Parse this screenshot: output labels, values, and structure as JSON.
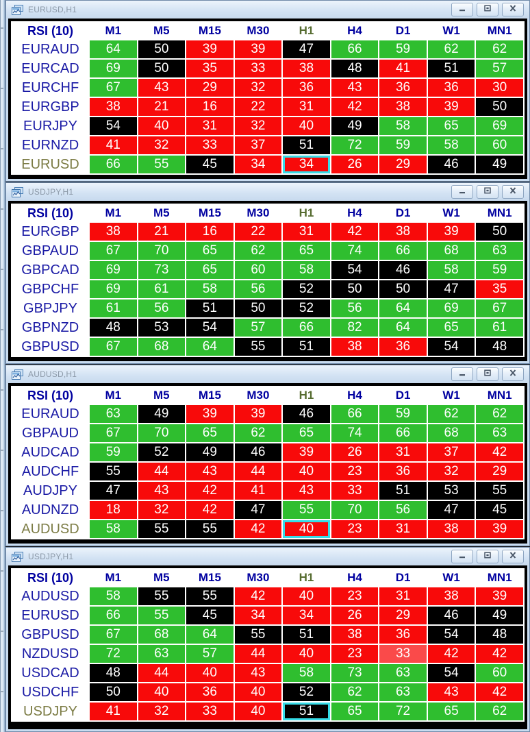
{
  "ui": {
    "colors": {
      "green": "#2fbe2f",
      "red": "#f80a0a",
      "red_light": "#fa4a4a",
      "black": "#000000",
      "highlight_border": "#35dce8",
      "header_text": "#0000a0",
      "active_timeframe_text": "#556b2f",
      "pair_text": "#1a1aa5",
      "chart_pair_text": "#7c7c45"
    },
    "titlebar_buttons": [
      {
        "id": "minimize",
        "label": "minimize"
      },
      {
        "id": "restore",
        "label": "restore"
      },
      {
        "id": "close",
        "label": "close"
      }
    ]
  },
  "windows": [
    {
      "title": "EURUSD,H1",
      "indicator": "RSI (10)",
      "timeframes": [
        "M1",
        "M5",
        "M15",
        "M30",
        "H1",
        "H4",
        "D1",
        "W1",
        "MN1"
      ],
      "active_timeframe": "H1",
      "rows": [
        {
          "pair": "EURAUD",
          "chart_symbol": false,
          "selected": -1,
          "values": [
            64,
            50,
            39,
            39,
            47,
            66,
            59,
            62,
            62
          ],
          "colors": [
            "green",
            "black",
            "red",
            "red",
            "black",
            "green",
            "green",
            "green",
            "green"
          ]
        },
        {
          "pair": "EURCAD",
          "chart_symbol": false,
          "selected": -1,
          "values": [
            69,
            50,
            35,
            33,
            38,
            48,
            41,
            51,
            57
          ],
          "colors": [
            "green",
            "black",
            "red",
            "red",
            "red",
            "black",
            "red",
            "black",
            "green"
          ]
        },
        {
          "pair": "EURCHF",
          "chart_symbol": false,
          "selected": -1,
          "values": [
            67,
            43,
            29,
            32,
            36,
            43,
            36,
            36,
            30
          ],
          "colors": [
            "green",
            "red",
            "red",
            "red",
            "red",
            "red",
            "red",
            "red",
            "red"
          ]
        },
        {
          "pair": "EURGBP",
          "chart_symbol": false,
          "selected": -1,
          "values": [
            38,
            21,
            16,
            22,
            31,
            42,
            38,
            39,
            50
          ],
          "colors": [
            "red",
            "red",
            "red",
            "red",
            "red",
            "red",
            "red",
            "red",
            "black"
          ]
        },
        {
          "pair": "EURJPY",
          "chart_symbol": false,
          "selected": -1,
          "values": [
            54,
            40,
            31,
            32,
            40,
            49,
            58,
            65,
            69
          ],
          "colors": [
            "black",
            "red",
            "red",
            "red",
            "red",
            "black",
            "green",
            "green",
            "green"
          ]
        },
        {
          "pair": "EURNZD",
          "chart_symbol": false,
          "selected": -1,
          "values": [
            41,
            32,
            33,
            37,
            51,
            72,
            59,
            58,
            60
          ],
          "colors": [
            "red",
            "red",
            "red",
            "red",
            "black",
            "green",
            "green",
            "green",
            "green"
          ]
        },
        {
          "pair": "EURUSD",
          "chart_symbol": true,
          "selected": 4,
          "values": [
            66,
            55,
            45,
            34,
            34,
            26,
            29,
            46,
            49
          ],
          "colors": [
            "green",
            "green",
            "black",
            "red",
            "red",
            "red",
            "red",
            "black",
            "black"
          ]
        }
      ]
    },
    {
      "title": "USDJPY,H1",
      "indicator": "RSI (10)",
      "timeframes": [
        "M1",
        "M5",
        "M15",
        "M30",
        "H1",
        "H4",
        "D1",
        "W1",
        "MN1"
      ],
      "active_timeframe": "H1",
      "rows": [
        {
          "pair": "EURGBP",
          "chart_symbol": false,
          "selected": -1,
          "values": [
            38,
            21,
            16,
            22,
            31,
            42,
            38,
            39,
            50
          ],
          "colors": [
            "red",
            "red",
            "red",
            "red",
            "red",
            "red",
            "red",
            "red",
            "black"
          ]
        },
        {
          "pair": "GBPAUD",
          "chart_symbol": false,
          "selected": -1,
          "values": [
            67,
            70,
            65,
            62,
            65,
            74,
            66,
            68,
            63
          ],
          "colors": [
            "green",
            "green",
            "green",
            "green",
            "green",
            "green",
            "green",
            "green",
            "green"
          ]
        },
        {
          "pair": "GBPCAD",
          "chart_symbol": false,
          "selected": -1,
          "values": [
            69,
            73,
            65,
            60,
            58,
            54,
            46,
            58,
            59
          ],
          "colors": [
            "green",
            "green",
            "green",
            "green",
            "green",
            "black",
            "black",
            "green",
            "green"
          ]
        },
        {
          "pair": "GBPCHF",
          "chart_symbol": false,
          "selected": -1,
          "values": [
            69,
            61,
            58,
            56,
            52,
            50,
            50,
            47,
            35
          ],
          "colors": [
            "green",
            "green",
            "green",
            "green",
            "black",
            "black",
            "black",
            "black",
            "red"
          ]
        },
        {
          "pair": "GBPJPY",
          "chart_symbol": false,
          "selected": -1,
          "values": [
            61,
            56,
            51,
            50,
            52,
            56,
            64,
            69,
            67
          ],
          "colors": [
            "green",
            "green",
            "black",
            "black",
            "black",
            "green",
            "green",
            "green",
            "green"
          ]
        },
        {
          "pair": "GBPNZD",
          "chart_symbol": false,
          "selected": -1,
          "values": [
            48,
            53,
            54,
            57,
            66,
            82,
            64,
            65,
            61
          ],
          "colors": [
            "black",
            "black",
            "black",
            "green",
            "green",
            "green",
            "green",
            "green",
            "green"
          ]
        },
        {
          "pair": "GBPUSD",
          "chart_symbol": false,
          "selected": -1,
          "values": [
            67,
            68,
            64,
            55,
            51,
            38,
            36,
            54,
            48
          ],
          "colors": [
            "green",
            "green",
            "green",
            "black",
            "black",
            "red",
            "red",
            "black",
            "black"
          ]
        }
      ]
    },
    {
      "title": "AUDUSD,H1",
      "indicator": "RSI (10)",
      "timeframes": [
        "M1",
        "M5",
        "M15",
        "M30",
        "H1",
        "H4",
        "D1",
        "W1",
        "MN1"
      ],
      "active_timeframe": "H1",
      "rows": [
        {
          "pair": "EURAUD",
          "chart_symbol": false,
          "selected": -1,
          "values": [
            63,
            49,
            39,
            39,
            46,
            66,
            59,
            62,
            62
          ],
          "colors": [
            "green",
            "black",
            "red",
            "red",
            "black",
            "green",
            "green",
            "green",
            "green"
          ]
        },
        {
          "pair": "GBPAUD",
          "chart_symbol": false,
          "selected": -1,
          "values": [
            67,
            70,
            65,
            62,
            65,
            74,
            66,
            68,
            63
          ],
          "colors": [
            "green",
            "green",
            "green",
            "green",
            "green",
            "green",
            "green",
            "green",
            "green"
          ]
        },
        {
          "pair": "AUDCAD",
          "chart_symbol": false,
          "selected": -1,
          "values": [
            59,
            52,
            49,
            46,
            39,
            26,
            31,
            37,
            42
          ],
          "colors": [
            "green",
            "black",
            "black",
            "black",
            "red",
            "red",
            "red",
            "red",
            "red"
          ]
        },
        {
          "pair": "AUDCHF",
          "chart_symbol": false,
          "selected": -1,
          "values": [
            55,
            44,
            43,
            44,
            40,
            23,
            36,
            32,
            29
          ],
          "colors": [
            "black",
            "red",
            "red",
            "red",
            "red",
            "red",
            "red",
            "red",
            "red"
          ]
        },
        {
          "pair": "AUDJPY",
          "chart_symbol": false,
          "selected": -1,
          "values": [
            47,
            43,
            42,
            41,
            43,
            33,
            51,
            53,
            55
          ],
          "colors": [
            "black",
            "red",
            "red",
            "red",
            "red",
            "red",
            "black",
            "black",
            "black"
          ]
        },
        {
          "pair": "AUDNZD",
          "chart_symbol": false,
          "selected": -1,
          "values": [
            18,
            32,
            42,
            47,
            55,
            70,
            56,
            47,
            45
          ],
          "colors": [
            "red",
            "red",
            "red",
            "black",
            "green",
            "green",
            "green",
            "black",
            "black"
          ]
        },
        {
          "pair": "AUDUSD",
          "chart_symbol": true,
          "selected": 4,
          "values": [
            58,
            55,
            55,
            42,
            40,
            23,
            31,
            38,
            39
          ],
          "colors": [
            "green",
            "black",
            "black",
            "red",
            "red",
            "red",
            "red",
            "red",
            "red"
          ]
        }
      ]
    },
    {
      "title": "USDJPY,H1",
      "indicator": "RSI (10)",
      "timeframes": [
        "M1",
        "M5",
        "M15",
        "M30",
        "H1",
        "H4",
        "D1",
        "W1",
        "MN1"
      ],
      "active_timeframe": "H1",
      "rows": [
        {
          "pair": "AUDUSD",
          "chart_symbol": false,
          "selected": -1,
          "values": [
            58,
            55,
            55,
            42,
            40,
            23,
            31,
            38,
            39
          ],
          "colors": [
            "green",
            "black",
            "black",
            "red",
            "red",
            "red",
            "red",
            "red",
            "red"
          ]
        },
        {
          "pair": "EURUSD",
          "chart_symbol": false,
          "selected": -1,
          "values": [
            66,
            55,
            45,
            34,
            34,
            26,
            29,
            46,
            49
          ],
          "colors": [
            "green",
            "green",
            "black",
            "red",
            "red",
            "red",
            "red",
            "black",
            "black"
          ]
        },
        {
          "pair": "GBPUSD",
          "chart_symbol": false,
          "selected": -1,
          "values": [
            67,
            68,
            64,
            55,
            51,
            38,
            36,
            54,
            48
          ],
          "colors": [
            "green",
            "green",
            "green",
            "black",
            "black",
            "red",
            "red",
            "black",
            "black"
          ]
        },
        {
          "pair": "NZDUSD",
          "chart_symbol": false,
          "selected": -1,
          "values": [
            72,
            63,
            57,
            44,
            40,
            23,
            33,
            42,
            42
          ],
          "colors": [
            "green",
            "green",
            "green",
            "red",
            "red",
            "red",
            "red_light",
            "red",
            "red"
          ]
        },
        {
          "pair": "USDCAD",
          "chart_symbol": false,
          "selected": -1,
          "values": [
            48,
            44,
            40,
            43,
            58,
            73,
            63,
            54,
            60
          ],
          "colors": [
            "black",
            "red",
            "red",
            "red",
            "green",
            "green",
            "green",
            "black",
            "green"
          ]
        },
        {
          "pair": "USDCHF",
          "chart_symbol": false,
          "selected": -1,
          "values": [
            50,
            40,
            36,
            40,
            52,
            62,
            63,
            43,
            42
          ],
          "colors": [
            "black",
            "red",
            "red",
            "red",
            "black",
            "green",
            "green",
            "red",
            "red"
          ]
        },
        {
          "pair": "USDJPY",
          "chart_symbol": true,
          "selected": 4,
          "values": [
            41,
            32,
            33,
            40,
            51,
            65,
            72,
            65,
            62
          ],
          "colors": [
            "red",
            "red",
            "red",
            "red",
            "black",
            "green",
            "green",
            "green",
            "green"
          ]
        }
      ]
    }
  ]
}
